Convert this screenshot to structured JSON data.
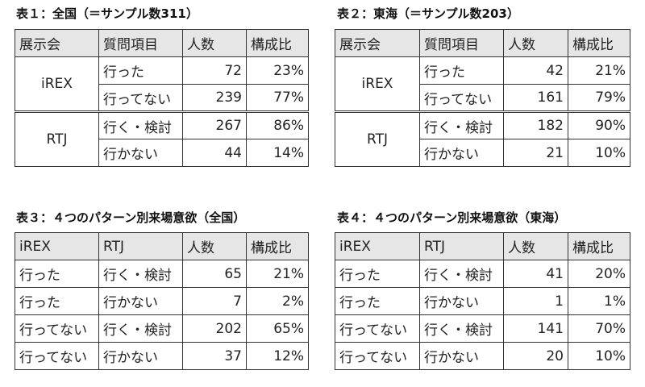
{
  "tables": [
    {
      "title": "表１：全国（＝サンプル数311）",
      "headers": [
        "展示会",
        "質問項目",
        "人数",
        "構成比"
      ],
      "groups": [
        {
          "name": "iREX",
          "rows": [
            [
              "行った",
              "72",
              "23%"
            ],
            [
              "行ってない",
              "239",
              "77%"
            ]
          ]
        },
        {
          "name": "RTJ",
          "rows": [
            [
              "行く・検討",
              "267",
              "86%"
            ],
            [
              "行かない",
              "44",
              "14%"
            ]
          ]
        }
      ]
    },
    {
      "title": "表２：東海（＝サンプル数203）",
      "headers": [
        "展示会",
        "質問項目",
        "人数",
        "構成比"
      ],
      "groups": [
        {
          "name": "iREX",
          "rows": [
            [
              "行った",
              "42",
              "21%"
            ],
            [
              "行ってない",
              "161",
              "79%"
            ]
          ]
        },
        {
          "name": "RTJ",
          "rows": [
            [
              "行く・検討",
              "182",
              "90%"
            ],
            [
              "行かない",
              "21",
              "10%"
            ]
          ]
        }
      ]
    },
    {
      "title": "表３：４つのパターン別来場意欲（全国）",
      "headers": [
        "iREX",
        "RTJ",
        "人数",
        "構成比"
      ],
      "rows": [
        [
          "行った",
          "行く・検討",
          "65",
          "21%"
        ],
        [
          "行った",
          "行かない",
          "7",
          "2%"
        ],
        [
          "行ってない",
          "行く・検討",
          "202",
          "65%"
        ],
        [
          "行ってない",
          "行かない",
          "37",
          "12%"
        ]
      ]
    },
    {
      "title": "表４：４つのパターン別来場意欲（東海）",
      "headers": [
        "iREX",
        "RTJ",
        "人数",
        "構成比"
      ],
      "rows": [
        [
          "行った",
          "行く・検討",
          "41",
          "20%"
        ],
        [
          "行った",
          "行かない",
          "1",
          "1%"
        ],
        [
          "行ってない",
          "行く・検討",
          "141",
          "70%"
        ],
        [
          "行ってない",
          "行かない",
          "20",
          "10%"
        ]
      ]
    }
  ]
}
